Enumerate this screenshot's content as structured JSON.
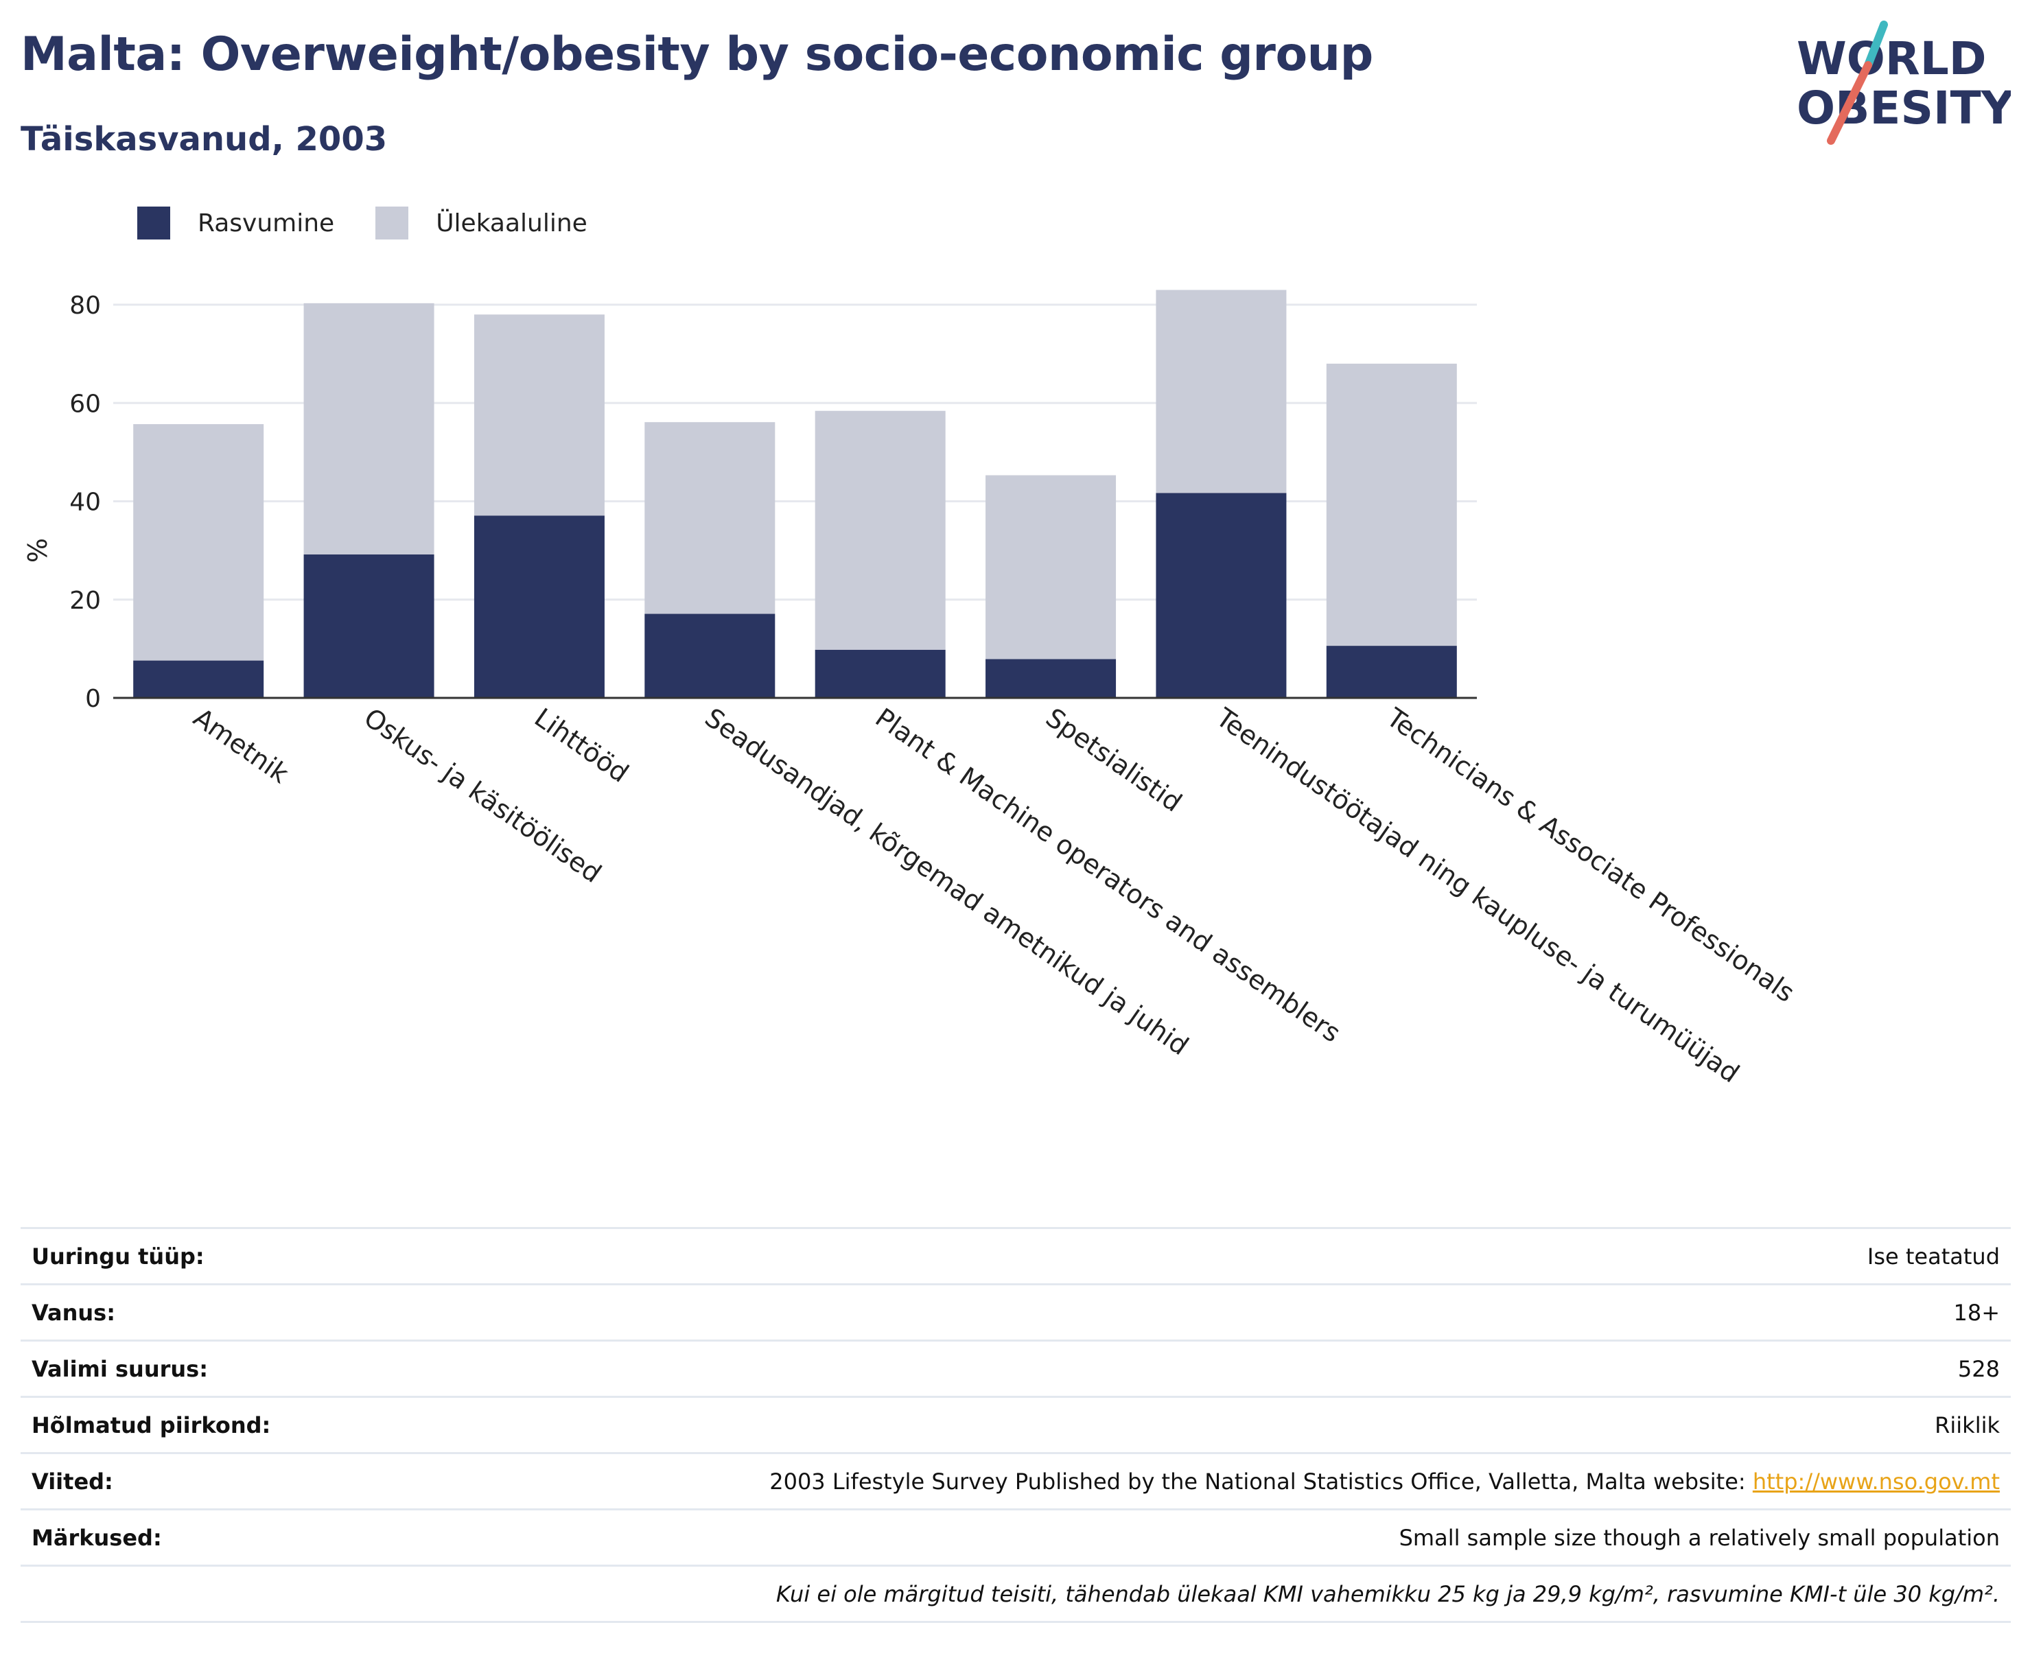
{
  "header": {
    "title": "Malta: Overweight/obesity by socio-economic group",
    "subtitle": "Täiskasvanud, 2003"
  },
  "logo": {
    "line1": "WORLD",
    "line2": "OBESITY",
    "colors": {
      "text": "#2a3561",
      "slash_top": "#3fb8c0",
      "slash_bottom": "#e46a5c"
    }
  },
  "colors": {
    "obesity": "#2a3561",
    "overweight": "#c9ccd8",
    "link": "#e8a317"
  },
  "chart_data": {
    "type": "bar",
    "stacked": true,
    "categories": [
      "Ametnik",
      "Oskus- ja käsitöölised",
      "Lihttööd",
      "Seadusandjad, kõrgemad ametnikud ja juhid",
      "Plant & Machine operators and assemblers",
      "Spetsialistid",
      "Teenindustöötajad ning kaupluse- ja turumüüjad",
      "Technicians & Associate Professionals"
    ],
    "series": [
      {
        "name": "Rasvumine",
        "color": "#2a3561",
        "values": [
          7.6,
          29.2,
          37.1,
          17.1,
          9.8,
          7.9,
          41.7,
          10.6
        ]
      },
      {
        "name": "Ülekaaluline",
        "color": "#c9ccd8",
        "values": [
          48.1,
          51.1,
          40.9,
          39.0,
          48.6,
          37.4,
          41.3,
          57.4
        ]
      }
    ],
    "xlabel": "",
    "ylabel": "%",
    "ylim": [
      0,
      90
    ],
    "yticks": [
      0,
      20,
      40,
      60,
      80
    ],
    "grid": true,
    "legend_position": "top-left"
  },
  "info": {
    "rows": [
      {
        "key": "Uuringu tüüp:",
        "value": "Ise teatatud"
      },
      {
        "key": "Vanus:",
        "value": "18+"
      },
      {
        "key": "Valimi suurus:",
        "value": "528"
      },
      {
        "key": "Hõlmatud piirkond:",
        "value": "Riiklik"
      }
    ],
    "references": {
      "key": "Viited:",
      "text": "2003 Lifestyle Survey Published by the National Statistics Office, Valletta, Malta website: ",
      "link": "http://www.nso.gov.mt"
    },
    "notes": {
      "key": "Märkused:",
      "value": "Small sample size though a relatively small population"
    },
    "footnote": "Kui ei ole märgitud teisiti, tähendab ülekaal KMI vahemikku 25 kg ja 29,9 kg/m², rasvumine KMI-t üle 30 kg/m²."
  }
}
